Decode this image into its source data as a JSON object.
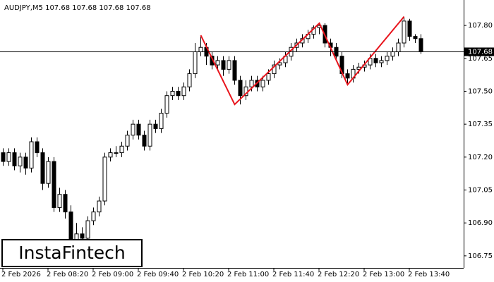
{
  "chart_data": {
    "type": "candlestick",
    "title": "AUDJPY,M5  107.68 107.68 107.68 107.68",
    "watermark": "InstaFintech",
    "categories": [
      "2 Feb 2026",
      null,
      null,
      null,
      null,
      null,
      null,
      null,
      "2 Feb 08:20",
      null,
      null,
      null,
      null,
      null,
      null,
      null,
      "2 Feb 09:00",
      null,
      null,
      null,
      null,
      null,
      null,
      null,
      "2 Feb 09:40",
      null,
      null,
      null,
      null,
      null,
      null,
      null,
      "2 Feb 10:20",
      null,
      null,
      null,
      null,
      null,
      null,
      null,
      "2 Feb 11:00",
      null,
      null,
      null,
      null,
      null,
      null,
      null,
      "2 Feb 11:40",
      null,
      null,
      null,
      null,
      null,
      null,
      null,
      "2 Feb 12:20",
      null,
      null,
      null,
      null,
      null,
      null,
      null,
      "2 Feb 13:00",
      null,
      null,
      null,
      null,
      null,
      null,
      null,
      "2 Feb 13:40",
      null,
      null
    ],
    "open": [
      107.22,
      107.18,
      107.22,
      107.16,
      107.2,
      107.15,
      107.27,
      107.22,
      107.08,
      107.18,
      106.97,
      107.03,
      106.95,
      106.8,
      106.85,
      106.83,
      106.91,
      106.95,
      107.0,
      107.2,
      107.22,
      107.22,
      107.25,
      107.3,
      107.35,
      107.3,
      107.25,
      107.35,
      107.33,
      107.4,
      107.48,
      107.5,
      107.48,
      107.52,
      107.58,
      107.68,
      107.7,
      107.66,
      107.62,
      107.64,
      107.6,
      107.64,
      107.55,
      107.48,
      107.52,
      107.55,
      107.52,
      107.55,
      107.58,
      107.62,
      107.63,
      107.66,
      107.7,
      107.72,
      107.74,
      107.76,
      107.79,
      107.8,
      107.72,
      107.7,
      107.66,
      107.58,
      107.56,
      107.6,
      107.61,
      107.62,
      107.65,
      107.63,
      107.64,
      107.66,
      107.68,
      107.72,
      107.82,
      107.75,
      107.74
    ],
    "high": [
      107.24,
      107.24,
      107.24,
      107.22,
      107.22,
      107.29,
      107.29,
      107.24,
      107.2,
      107.2,
      107.06,
      107.05,
      106.98,
      106.9,
      106.88,
      106.93,
      106.97,
      107.02,
      107.22,
      107.24,
      107.25,
      107.27,
      107.32,
      107.37,
      107.37,
      107.32,
      107.37,
      107.37,
      107.42,
      107.5,
      107.52,
      107.52,
      107.54,
      107.6,
      107.72,
      107.75,
      107.72,
      107.68,
      107.66,
      107.66,
      107.66,
      107.66,
      107.57,
      107.55,
      107.57,
      107.57,
      107.57,
      107.6,
      107.64,
      107.65,
      107.68,
      107.72,
      107.74,
      107.76,
      107.78,
      107.8,
      107.81,
      107.81,
      107.74,
      107.72,
      107.68,
      107.6,
      107.62,
      107.63,
      107.64,
      107.67,
      107.67,
      107.66,
      107.68,
      107.7,
      107.74,
      107.84,
      107.83,
      107.76,
      107.76
    ],
    "low": [
      107.16,
      107.16,
      107.14,
      107.13,
      107.12,
      107.13,
      107.2,
      107.05,
      107.06,
      106.95,
      106.95,
      106.92,
      106.74,
      106.77,
      106.78,
      106.8,
      106.89,
      106.93,
      106.98,
      107.18,
      107.2,
      107.2,
      107.23,
      107.28,
      107.28,
      107.23,
      107.23,
      107.31,
      107.31,
      107.38,
      107.46,
      107.46,
      107.46,
      107.5,
      107.56,
      107.66,
      107.62,
      107.6,
      107.6,
      107.57,
      107.58,
      107.53,
      107.44,
      107.46,
      107.5,
      107.5,
      107.5,
      107.53,
      107.56,
      107.6,
      107.61,
      107.64,
      107.68,
      107.7,
      107.72,
      107.74,
      107.76,
      107.7,
      107.66,
      107.64,
      107.56,
      107.53,
      107.54,
      107.58,
      107.59,
      107.6,
      107.61,
      107.61,
      107.62,
      107.64,
      107.66,
      107.7,
      107.73,
      107.72,
      107.67
    ],
    "close": [
      107.18,
      107.22,
      107.16,
      107.2,
      107.15,
      107.27,
      107.22,
      107.08,
      107.18,
      106.97,
      107.03,
      106.95,
      106.8,
      106.85,
      106.83,
      106.91,
      106.95,
      107.0,
      107.2,
      107.22,
      107.22,
      107.25,
      107.3,
      107.35,
      107.3,
      107.25,
      107.35,
      107.33,
      107.4,
      107.48,
      107.5,
      107.48,
      107.52,
      107.58,
      107.68,
      107.7,
      107.66,
      107.62,
      107.64,
      107.6,
      107.64,
      107.55,
      107.48,
      107.52,
      107.55,
      107.52,
      107.55,
      107.58,
      107.62,
      107.63,
      107.66,
      107.7,
      107.72,
      107.74,
      107.76,
      107.79,
      107.8,
      107.72,
      107.7,
      107.66,
      107.58,
      107.56,
      107.6,
      107.61,
      107.62,
      107.65,
      107.63,
      107.64,
      107.66,
      107.68,
      107.72,
      107.82,
      107.75,
      107.74,
      107.68
    ],
    "up_color": "#ffffff",
    "down_color": "#000000",
    "current_price": 107.68,
    "pattern": {
      "color": "#e8141c",
      "x": [
        35,
        41,
        56,
        61,
        71
      ],
      "values": [
        107.755,
        107.44,
        107.81,
        107.53,
        107.84
      ]
    },
    "ylim": [
      106.695,
      107.916
    ],
    "yticks": [
      106.75,
      {
        "value": 106.9,
        "label": "106.90"
      },
      107.05,
      {
        "value": 107.2,
        "label": "107.20"
      },
      107.35,
      {
        "value": 107.5,
        "label": "107.50"
      },
      107.65,
      {
        "value": 107.8,
        "label": "107.80"
      }
    ]
  }
}
